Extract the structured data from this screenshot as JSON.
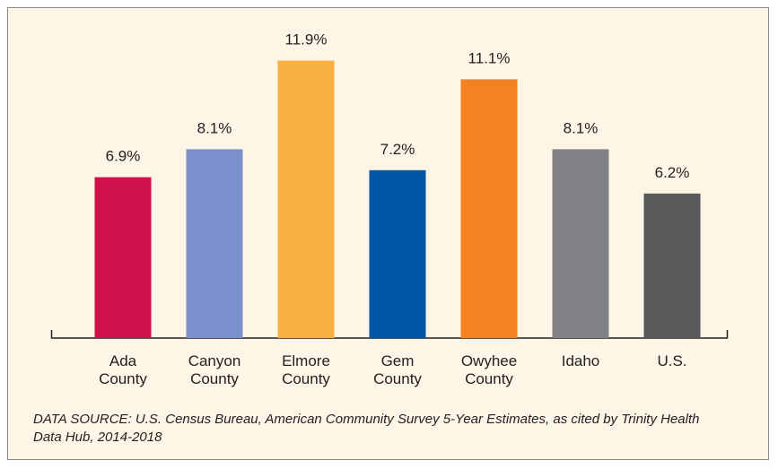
{
  "chart_data": {
    "type": "bar",
    "categories": [
      "Ada County",
      "Canyon County",
      "Elmore County",
      "Gem County",
      "Owyhee County",
      "Idaho",
      "U.S."
    ],
    "values": [
      6.9,
      8.1,
      11.9,
      7.2,
      11.1,
      8.1,
      6.2
    ],
    "value_labels": [
      "6.9%",
      "8.1%",
      "11.9%",
      "7.2%",
      "11.1%",
      "8.1%",
      "6.2%"
    ],
    "colors": [
      "#d0104a",
      "#7b8fcc",
      "#f9b040",
      "#0055a4",
      "#f58220",
      "#808285",
      "#58595b"
    ],
    "ylim": [
      0,
      12
    ],
    "source": "DATA SOURCE: U.S. Census Bureau, American Community Survey 5-Year Estimates, as cited by Trinity Health Data Hub, 2014-2018"
  }
}
